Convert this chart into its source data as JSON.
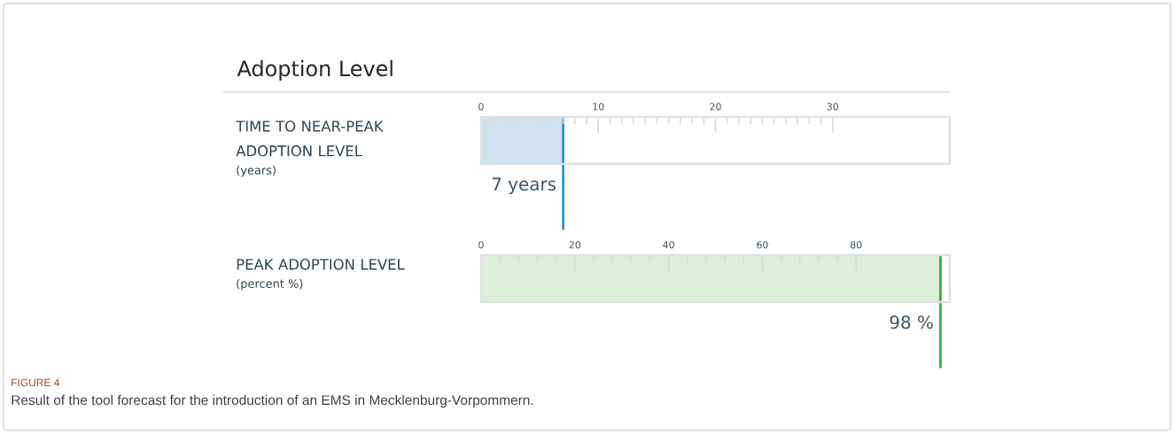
{
  "chart_data": [
    {
      "type": "bar",
      "orientation": "horizontal",
      "title": "Adoption Level",
      "categories": [
        "TIME TO NEAR-PEAK ADOPTION LEVEL"
      ],
      "xlabel": "(years)",
      "values": [
        7
      ],
      "color": "#cfe2ef",
      "xlim": [
        0,
        40
      ],
      "xticks": [
        0,
        10,
        20,
        30
      ],
      "ref_lines": [
        {
          "axis": "x",
          "value": 7,
          "label": "7 years",
          "color": "#1a8fce"
        }
      ]
    },
    {
      "type": "bar",
      "orientation": "horizontal",
      "categories": [
        "PEAK ADOPTION LEVEL"
      ],
      "xlabel": "(percent %)",
      "values": [
        98
      ],
      "color": "#dcefd8",
      "xlim": [
        0,
        100
      ],
      "xticks": [
        0,
        20,
        40,
        60,
        80
      ],
      "ref_lines": [
        {
          "axis": "x",
          "value": 98,
          "label": "98 %",
          "color": "#2eaa2e"
        }
      ],
      "annotations": [
        "FIGURE 4",
        "Result of the tool forecast for the introduction of an EMS in Mecklenburg-Vorpommern."
      ]
    }
  ]
}
